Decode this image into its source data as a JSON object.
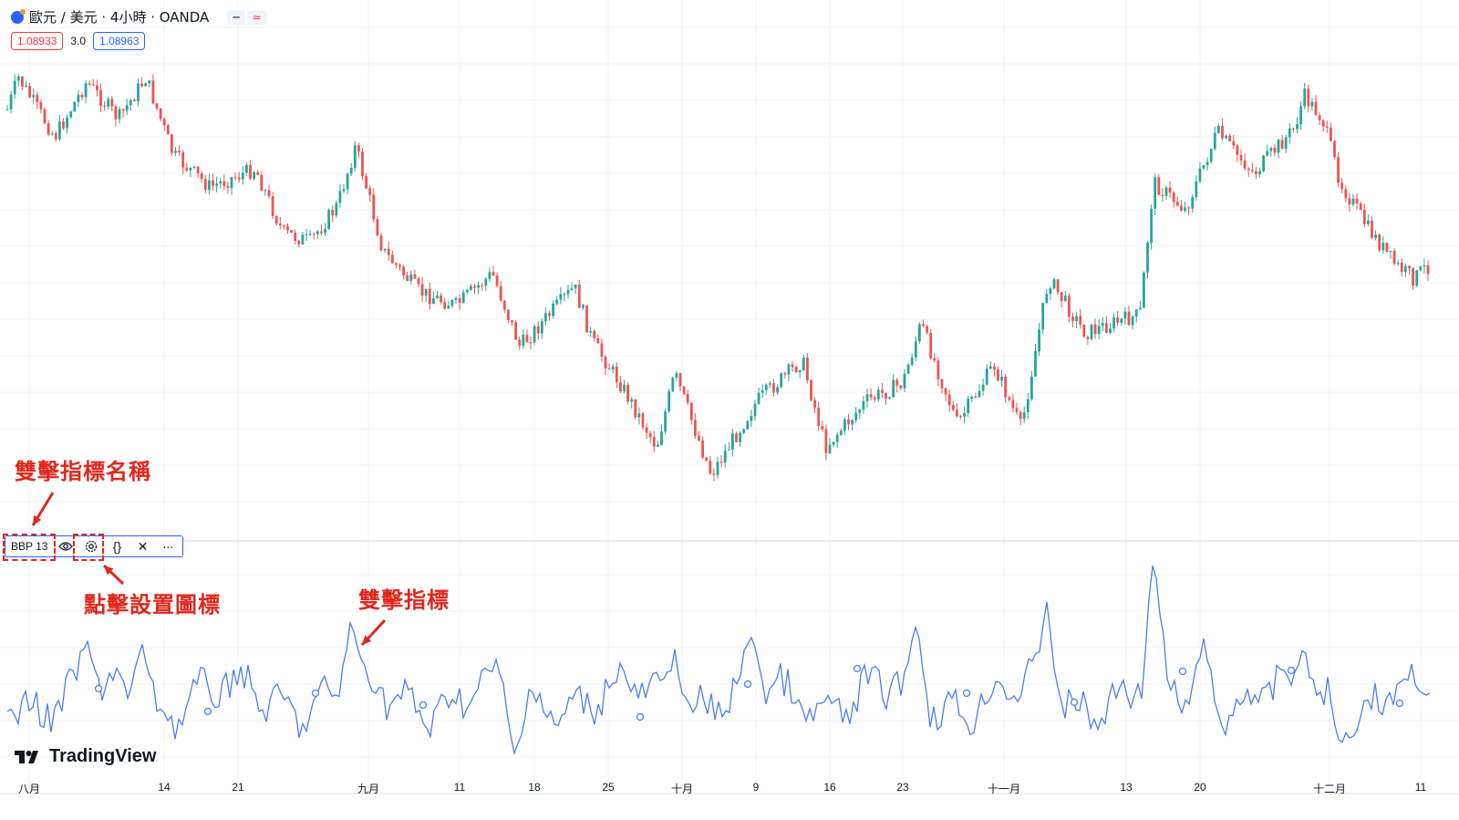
{
  "header": {
    "symbol_title": "歐元 / 美元 · 4小時 · OANDA",
    "sell_price": "1.08933",
    "spread": "3.0",
    "buy_price": "1.08963",
    "pill_minus": "━",
    "pill_wave": "≈"
  },
  "indicator_toolbar": {
    "name": "BBP 13",
    "eye_icon": "eye-icon",
    "settings_icon": "gear-icon",
    "source_icon": "{}",
    "close_icon": "✕",
    "more_icon": "∙∙∙"
  },
  "annotations": {
    "indicator_name_note": "雙擊指標名稱",
    "settings_note": "點擊設置圖標",
    "indicator_note": "雙擊指標"
  },
  "branding": {
    "logo_text": "TradingView"
  },
  "x_axis": {
    "labels": [
      "八月",
      "14",
      "21",
      "九月",
      "11",
      "18",
      "25",
      "十月",
      "9",
      "16",
      "23",
      "十一月",
      "13",
      "20",
      "十二月",
      "11"
    ]
  },
  "colors": {
    "up": "#26a69a",
    "down": "#ef5350",
    "indicator_line": "#4a7ef0",
    "annotation": "#e1261c",
    "accent": "#2962ff"
  }
}
